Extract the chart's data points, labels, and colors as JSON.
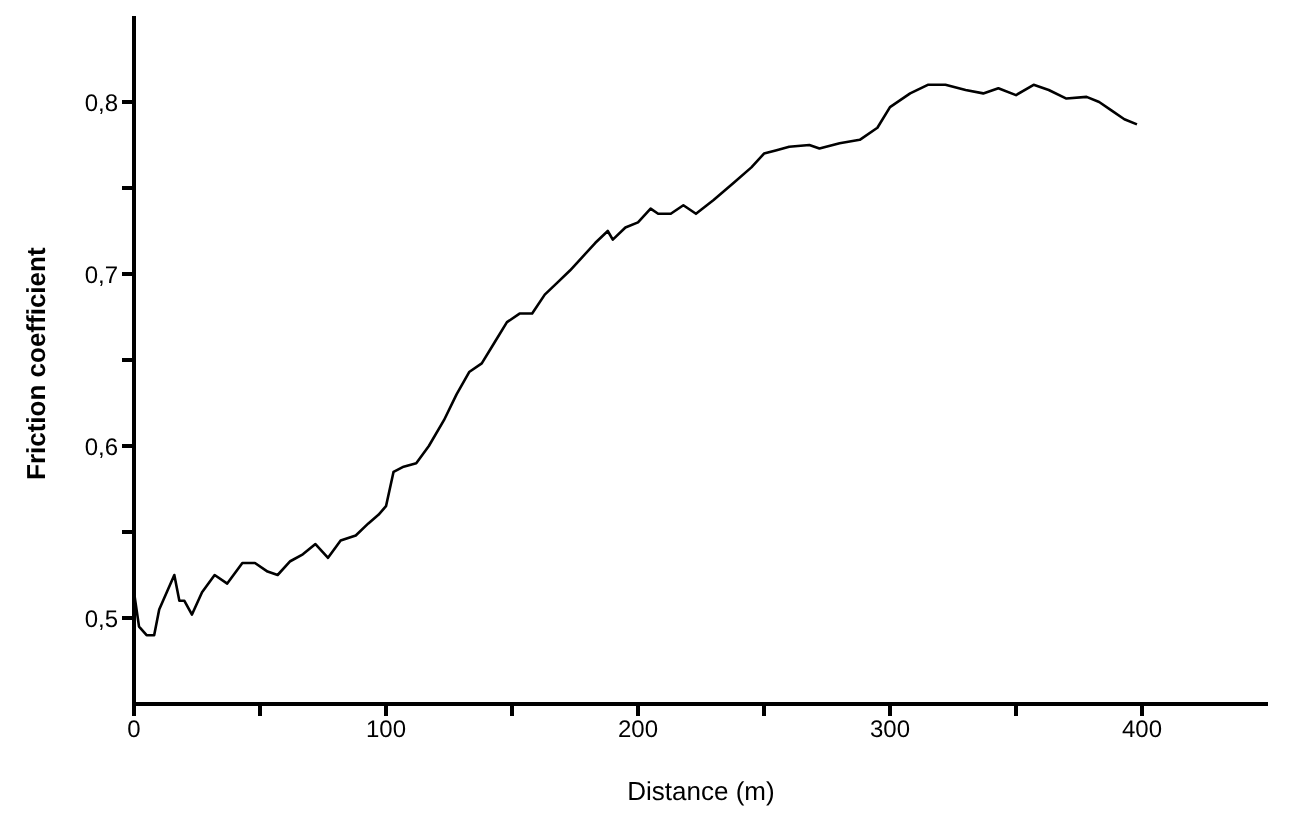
{
  "chart_data": {
    "type": "line",
    "xlabel": "Distance (m)",
    "ylabel": "Friction coefficient",
    "xlim": [
      0,
      450
    ],
    "ylim": [
      0.45,
      0.85
    ],
    "xticks": [
      0,
      {
        "value": 50,
        "label": null
      },
      100,
      {
        "value": 150,
        "label": null
      },
      200,
      {
        "value": 250,
        "label": null
      },
      300,
      {
        "value": 350,
        "label": null
      },
      400
    ],
    "yticks": [
      {
        "value": 0.5,
        "label": "0,5"
      },
      {
        "value": 0.55,
        "label": null
      },
      {
        "value": 0.6,
        "label": "0,6"
      },
      {
        "value": 0.65,
        "label": null
      },
      {
        "value": 0.7,
        "label": "0,7"
      },
      {
        "value": 0.75,
        "label": null
      },
      {
        "value": 0.8,
        "label": "0,8"
      }
    ],
    "grid": false,
    "legend": false,
    "marker": "none",
    "line_style": "solid",
    "series": [
      {
        "color": "#000000",
        "x": [
          0,
          2,
          5,
          8,
          10,
          13,
          16,
          18,
          20,
          23,
          27,
          32,
          37,
          43,
          48,
          53,
          57,
          62,
          67,
          72,
          77,
          82,
          88,
          93,
          97,
          100,
          103,
          107,
          112,
          117,
          123,
          128,
          133,
          138,
          143,
          148,
          153,
          158,
          163,
          168,
          173,
          178,
          183,
          188,
          190,
          195,
          200,
          205,
          208,
          213,
          218,
          223,
          230,
          238,
          245,
          250,
          255,
          260,
          268,
          272,
          280,
          288,
          295,
          300,
          308,
          315,
          322,
          330,
          337,
          343,
          350,
          357,
          363,
          370,
          378,
          383,
          388,
          393,
          398
        ],
        "values": [
          0.515,
          0.495,
          0.49,
          0.49,
          0.505,
          0.515,
          0.525,
          0.51,
          0.51,
          0.502,
          0.515,
          0.525,
          0.52,
          0.532,
          0.532,
          0.527,
          0.525,
          0.533,
          0.537,
          0.543,
          0.535,
          0.545,
          0.548,
          0.555,
          0.56,
          0.565,
          0.585,
          0.588,
          0.59,
          0.6,
          0.615,
          0.63,
          0.643,
          0.648,
          0.66,
          0.672,
          0.677,
          0.677,
          0.688,
          0.695,
          0.702,
          0.71,
          0.718,
          0.725,
          0.72,
          0.727,
          0.73,
          0.738,
          0.735,
          0.735,
          0.74,
          0.735,
          0.743,
          0.753,
          0.762,
          0.77,
          0.772,
          0.774,
          0.775,
          0.773,
          0.776,
          0.778,
          0.785,
          0.797,
          0.805,
          0.81,
          0.81,
          0.807,
          0.805,
          0.808,
          0.804,
          0.81,
          0.807,
          0.802,
          0.803,
          0.8,
          0.795,
          0.79,
          0.787
        ]
      }
    ]
  }
}
